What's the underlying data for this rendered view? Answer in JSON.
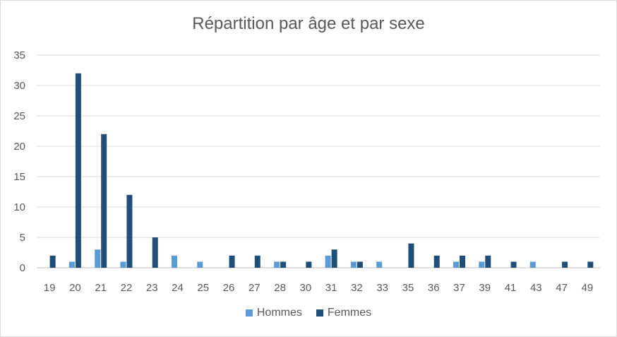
{
  "chart_data": {
    "type": "bar",
    "title": "Répartition par âge et par sexe",
    "xlabel": "",
    "ylabel": "",
    "ylim": [
      0,
      35
    ],
    "yticks": [
      0,
      5,
      10,
      15,
      20,
      25,
      30,
      35
    ],
    "grid": true,
    "legend_position": "bottom",
    "categories": [
      "19",
      "20",
      "21",
      "22",
      "23",
      "24",
      "25",
      "26",
      "27",
      "28",
      "30",
      "31",
      "32",
      "33",
      "35",
      "36",
      "37",
      "39",
      "41",
      "43",
      "47",
      "49"
    ],
    "series": [
      {
        "name": "Hommes",
        "color": "#5b9bd5",
        "values": [
          0,
          1,
          3,
          1,
          0,
          2,
          1,
          0,
          0,
          1,
          0,
          2,
          1,
          1,
          0,
          0,
          1,
          1,
          0,
          1,
          0,
          0
        ]
      },
      {
        "name": "Femmes",
        "color": "#1f4e79",
        "values": [
          2,
          32,
          22,
          12,
          5,
          0,
          0,
          2,
          2,
          1,
          1,
          3,
          1,
          0,
          4,
          2,
          2,
          2,
          1,
          0,
          1,
          1
        ]
      }
    ]
  }
}
